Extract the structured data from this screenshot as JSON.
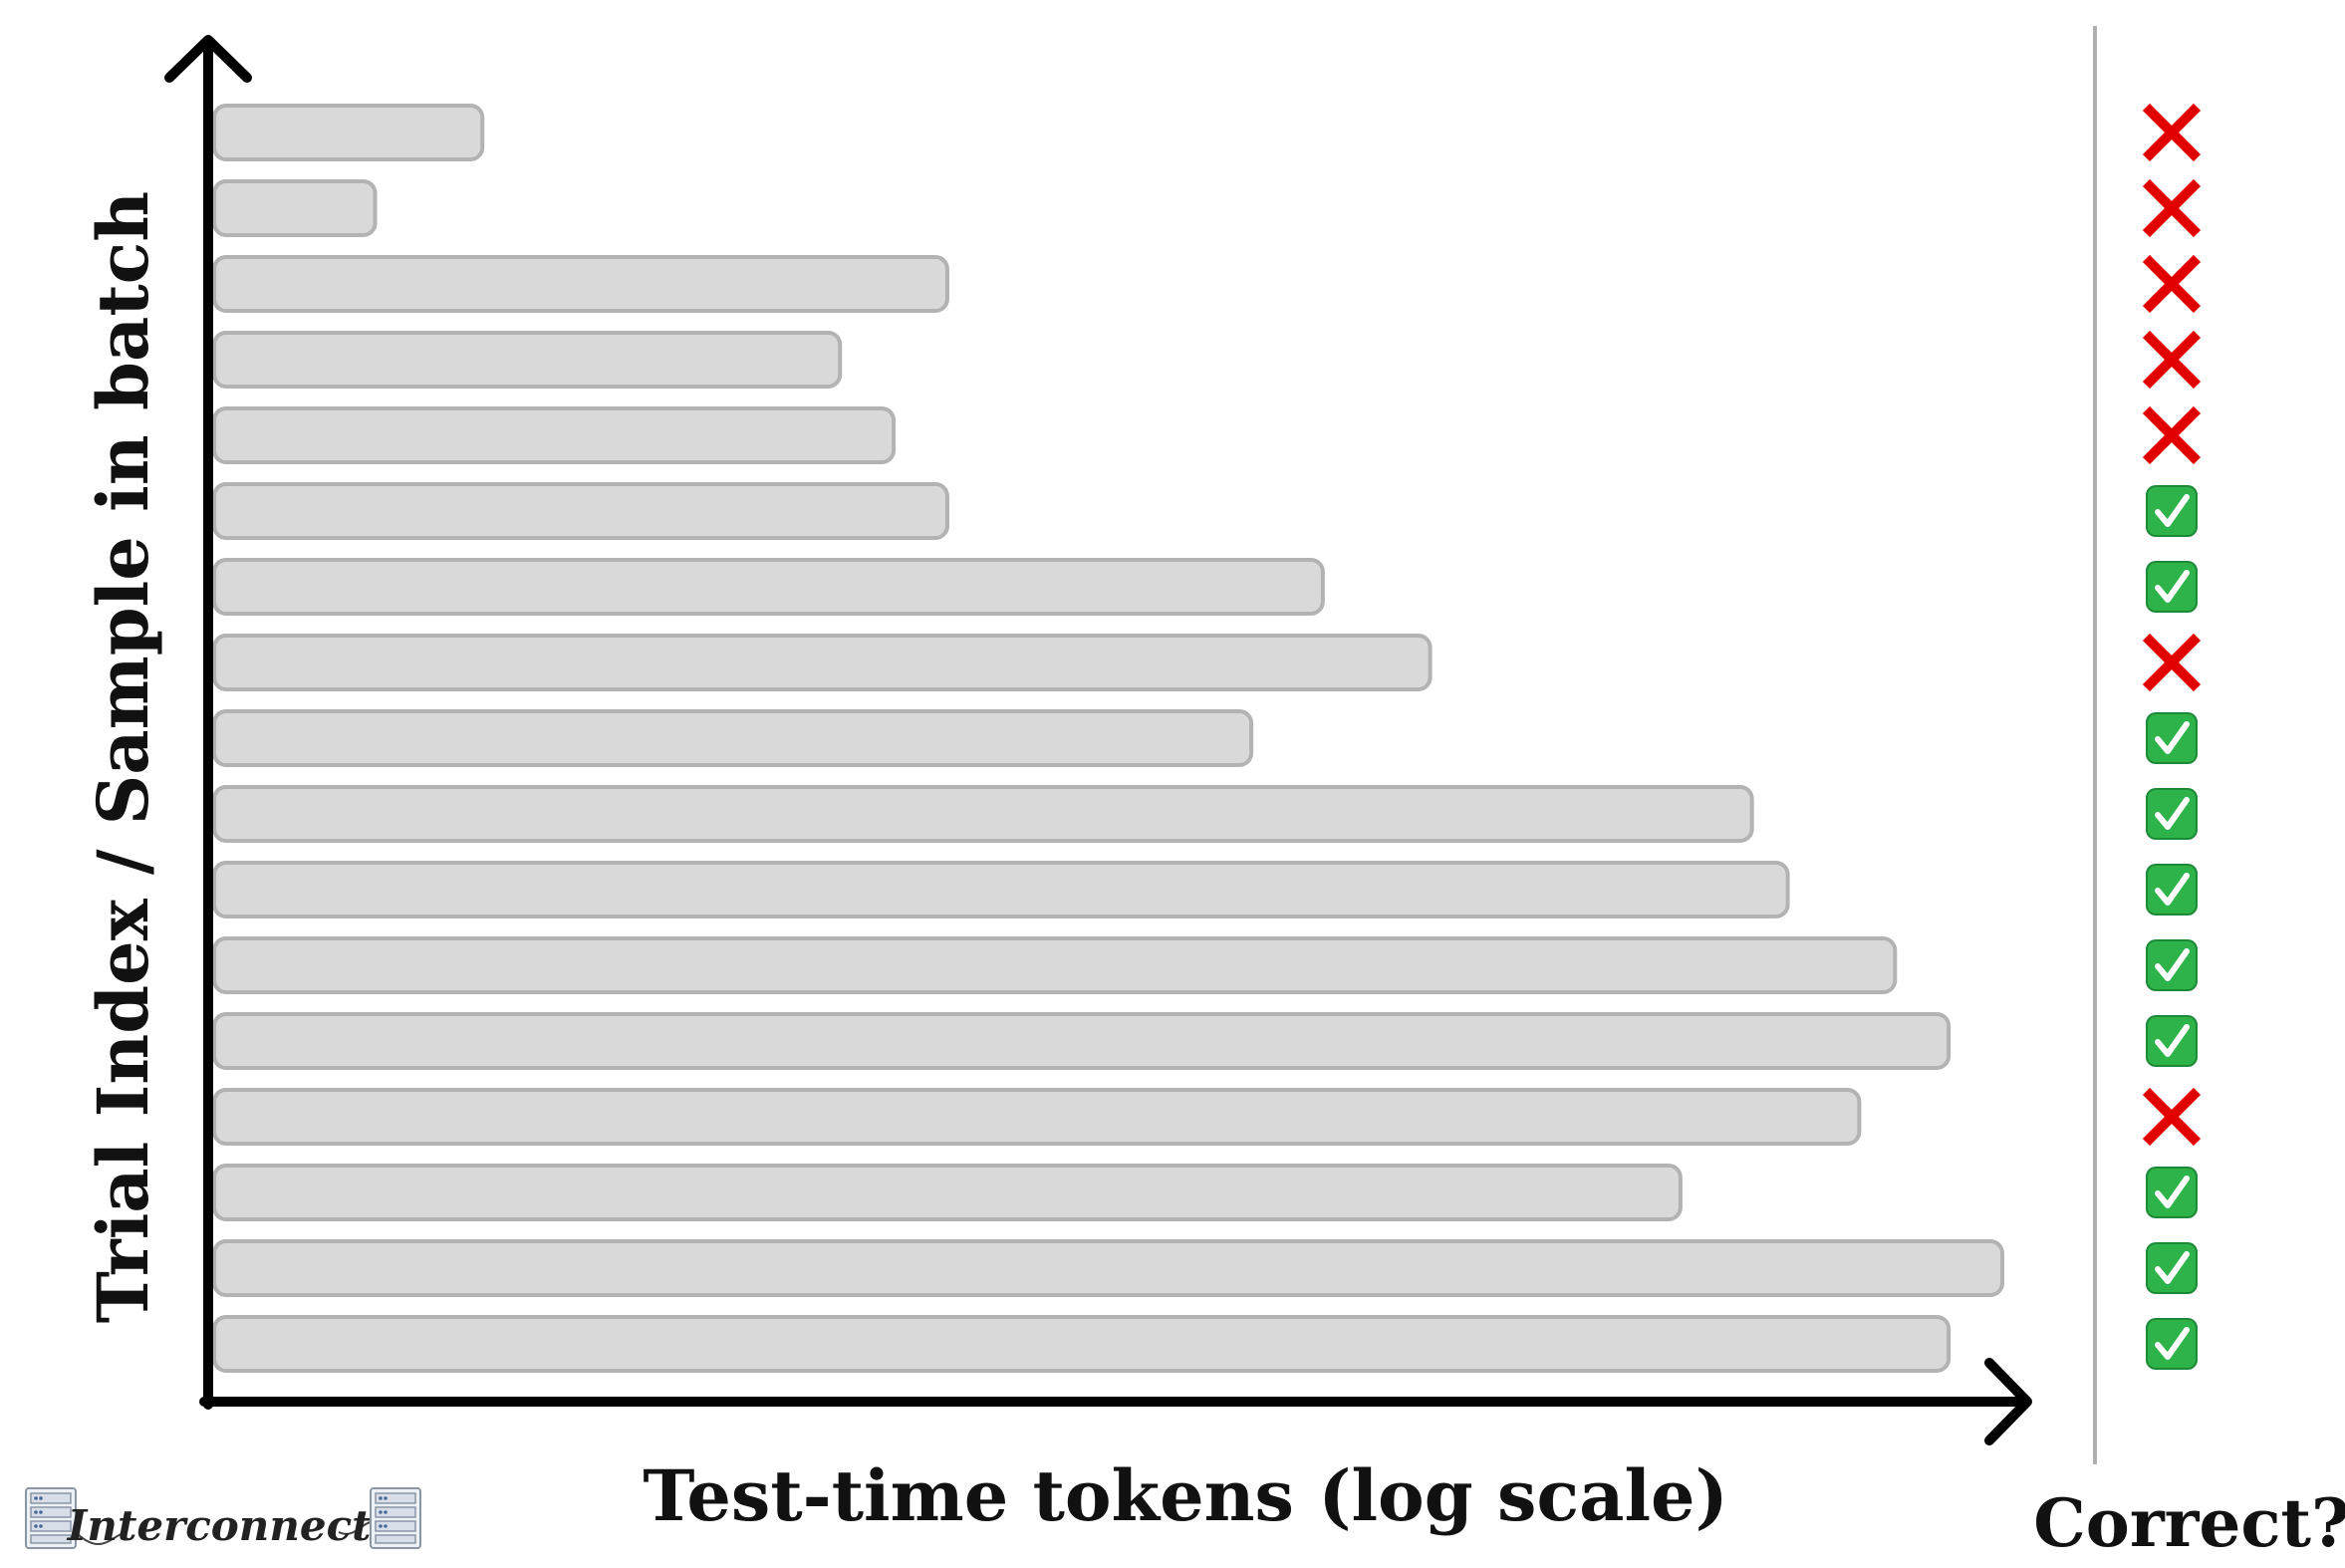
{
  "chart_data": {
    "type": "bar",
    "orientation": "horizontal",
    "xlabel": "Test-time tokens (log scale)",
    "ylabel": "Trial Index / Sample in batch",
    "x_scale": "log",
    "x_ticks_shown": false,
    "y_ticks_shown": false,
    "grid": false,
    "x_range_relative": [
      0,
      1
    ],
    "bar_color": "#d9d9d9",
    "bar_stroke": "#b3b3b3",
    "series": [
      {
        "values": [
          0.15,
          0.09,
          0.41,
          0.35,
          0.38,
          0.41,
          0.62,
          0.68,
          0.58,
          0.86,
          0.88,
          0.94,
          0.97,
          0.92,
          0.82,
          1.0,
          0.97
        ]
      }
    ],
    "correct_label": "Correct?",
    "correct": [
      false,
      false,
      false,
      false,
      false,
      true,
      true,
      false,
      true,
      true,
      true,
      true,
      true,
      false,
      true,
      true,
      true
    ]
  },
  "colors": {
    "axis": "#000000",
    "divider": "#b0b0b0",
    "wrong_mark": "#e00000",
    "check_fill": "#2db34a",
    "check_mark": "#ffffff"
  },
  "icons": {
    "wrong": "x-mark-icon",
    "right": "check-box-icon"
  },
  "logo": {
    "text": "Interconnects",
    "icon": "server-rack-icon"
  }
}
